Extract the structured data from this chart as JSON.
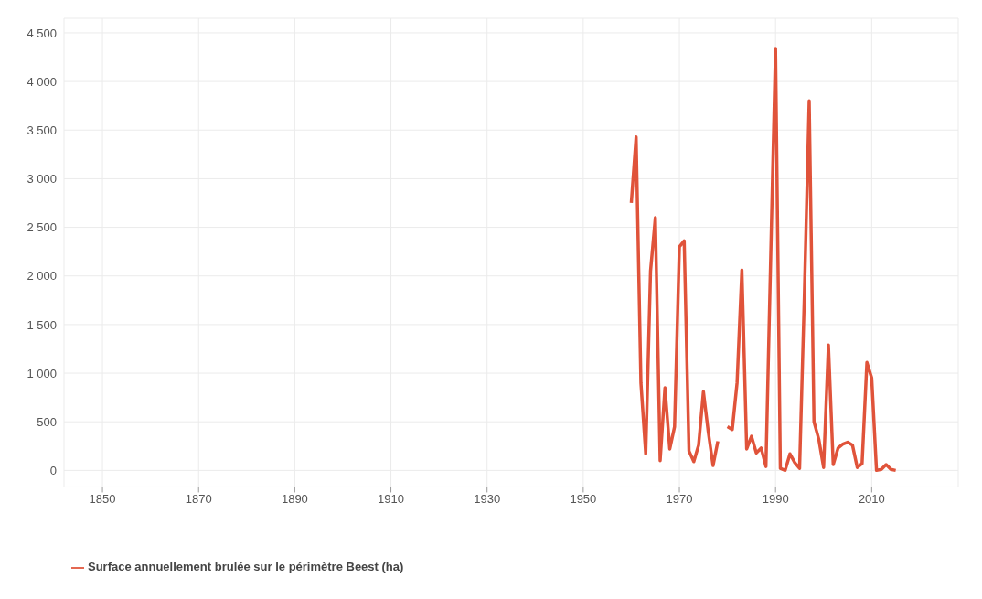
{
  "chart_data": {
    "type": "line",
    "x": [
      1960,
      1961,
      1962,
      1963,
      1964,
      1965,
      1966,
      1967,
      1968,
      1969,
      1970,
      1971,
      1972,
      1973,
      1974,
      1975,
      1976,
      1977,
      1978,
      1979,
      1980,
      1981,
      1982,
      1983,
      1984,
      1985,
      1986,
      1987,
      1988,
      1989,
      1990,
      1991,
      1992,
      1993,
      1994,
      1995,
      1996,
      1997,
      1998,
      1999,
      2000,
      2001,
      2002,
      2003,
      2004,
      2005,
      2006,
      2007,
      2008,
      2009,
      2010,
      2011,
      2012,
      2013,
      2014,
      2015
    ],
    "series": [
      {
        "name": "Surface annuellement brulée sur le périmètre Beest (ha)",
        "color": "#e0533a",
        "values": [
          2750,
          3430,
          900,
          170,
          2050,
          2600,
          100,
          850,
          220,
          450,
          2300,
          2360,
          200,
          90,
          260,
          810,
          400,
          50,
          300,
          null,
          450,
          420,
          900,
          2060,
          220,
          350,
          180,
          230,
          40,
          2200,
          4340,
          20,
          0,
          170,
          80,
          20,
          1800,
          3800,
          500,
          320,
          30,
          1290,
          60,
          230,
          270,
          290,
          260,
          30,
          70,
          1110,
          950,
          0,
          10,
          60,
          10,
          0
        ]
      }
    ],
    "xlim": [
      1842,
      2028
    ],
    "xticks": [
      1850,
      1870,
      1890,
      1910,
      1930,
      1950,
      1970,
      1990,
      2010
    ],
    "ylim": [
      -170,
      4650
    ],
    "yticks": [
      0,
      500,
      {
        "value": 1000,
        "label": "1 000"
      },
      {
        "value": 1500,
        "label": "1 500"
      },
      {
        "value": 2000,
        "label": "2 000"
      },
      {
        "value": 2500,
        "label": "2 500"
      },
      {
        "value": 3000,
        "label": "3 000"
      },
      {
        "value": 3500,
        "label": "3 500"
      },
      {
        "value": 4000,
        "label": "4 000"
      },
      {
        "value": 4500,
        "label": "4 500"
      }
    ],
    "grid": true,
    "legend": "bottom left",
    "marker": "none",
    "line_style": "solid"
  }
}
